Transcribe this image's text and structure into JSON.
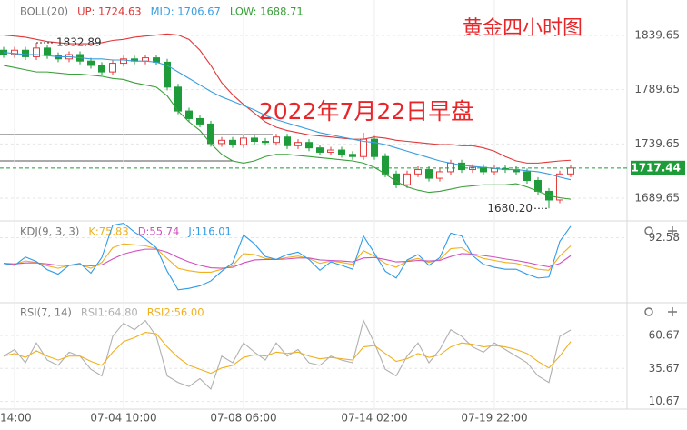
{
  "chart_data": [
    {
      "type": "candlestick",
      "title": "黄金四小时图",
      "annotation": "2022年7月22日早盘",
      "legend": [
        "BOLL(20)",
        "UP: 1724.63",
        "MID: 1706.67",
        "LOW: 1688.71"
      ],
      "categories": [
        null,
        "14:00",
        null,
        null,
        null,
        null,
        null,
        null,
        null,
        null,
        null,
        "07-04 10:00",
        null,
        null,
        null,
        null,
        null,
        null,
        null,
        null,
        null,
        null,
        "07-08 06:00",
        null,
        null,
        null,
        null,
        null,
        null,
        null,
        null,
        null,
        null,
        null,
        "07-14 02:00",
        null,
        null,
        null,
        null,
        null,
        null,
        null,
        null,
        null,
        null,
        "07-19 22:00",
        null,
        null,
        null,
        null,
        null,
        null,
        null
      ],
      "open": [
        1826,
        1822,
        1826,
        1820,
        1828,
        1821,
        1818,
        1822,
        1816,
        1812,
        1806,
        1814,
        1818,
        1816,
        1819,
        1815,
        1792,
        1770,
        1763,
        1758,
        1740,
        1743,
        1739,
        1745,
        1742,
        1741,
        1746,
        1738,
        1741,
        1736,
        1732,
        1734,
        1730,
        1728,
        1744,
        1728,
        1712,
        1702,
        1712,
        1716,
        1708,
        1714,
        1722,
        1716,
        1718,
        1714,
        1717,
        1716,
        1714,
        1706,
        1696,
        1688,
        1712
      ],
      "high": [
        1829,
        1829,
        1829,
        1832.89,
        1831,
        1824,
        1825,
        1825,
        1819,
        1815,
        1817,
        1821,
        1821,
        1822,
        1822,
        1818,
        1795,
        1773,
        1766,
        1761,
        1746,
        1746,
        1748,
        1748,
        1745,
        1749,
        1749,
        1744,
        1744,
        1739,
        1737,
        1737,
        1733,
        1750,
        1747,
        1731,
        1715,
        1715,
        1719,
        1719,
        1717,
        1725,
        1725,
        1721,
        1721,
        1720,
        1720,
        1719,
        1717,
        1709,
        1699,
        1715,
        1720
      ],
      "low": [
        1819,
        1819,
        1817,
        1817,
        1818,
        1815,
        1815,
        1813,
        1809,
        1803,
        1803,
        1811,
        1813,
        1813,
        1812,
        1789,
        1767,
        1760,
        1755,
        1737,
        1737,
        1736,
        1736,
        1739,
        1738,
        1738,
        1735,
        1735,
        1733,
        1729,
        1729,
        1727,
        1725,
        1725,
        1725,
        1709,
        1699,
        1699,
        1709,
        1705,
        1705,
        1711,
        1713,
        1713,
        1711,
        1711,
        1713,
        1711,
        1703,
        1693,
        1680.2,
        1685,
        1709
      ],
      "close": [
        1822,
        1826,
        1820,
        1828,
        1821,
        1818,
        1822,
        1816,
        1812,
        1806,
        1814,
        1818,
        1816,
        1819,
        1815,
        1792,
        1770,
        1763,
        1758,
        1740,
        1743,
        1739,
        1745,
        1742,
        1741,
        1746,
        1738,
        1741,
        1736,
        1732,
        1734,
        1730,
        1728,
        1744,
        1728,
        1712,
        1702,
        1712,
        1716,
        1708,
        1714,
        1722,
        1716,
        1718,
        1714,
        1717,
        1716,
        1714,
        1706,
        1696,
        1688,
        1712,
        1717.44
      ],
      "max_label": "1832.89",
      "min_label": "1680.20",
      "up_color": "#e8393b",
      "down_color": "#1e9c3a",
      "series": [
        {
          "name": "UP",
          "color": "#e0393b",
          "values": [
            1840,
            1839,
            1838,
            1836,
            1834,
            1833,
            1832,
            1832,
            1832,
            1833,
            1835,
            1836,
            1838,
            1839,
            1840,
            1841,
            1840,
            1836,
            1826,
            1812,
            1796,
            1785,
            1776,
            1768,
            1760,
            1755,
            1752,
            1750,
            1748,
            1747,
            1746,
            1745,
            1744,
            1744,
            1746,
            1745,
            1743,
            1742,
            1741,
            1740,
            1739,
            1739,
            1738,
            1738,
            1736,
            1733,
            1728,
            1724,
            1722,
            1722,
            1723,
            1724,
            1724.63
          ]
        },
        {
          "name": "MID",
          "color": "#3a9ee0",
          "values": [
            1824,
            1823,
            1822,
            1822,
            1821,
            1820,
            1820,
            1819,
            1818,
            1818,
            1817,
            1817,
            1816,
            1816,
            1815,
            1812,
            1806,
            1800,
            1794,
            1788,
            1783,
            1779,
            1775,
            1771,
            1766,
            1762,
            1759,
            1756,
            1753,
            1750,
            1748,
            1746,
            1744,
            1742,
            1741,
            1739,
            1736,
            1733,
            1730,
            1727,
            1724,
            1722,
            1720,
            1719,
            1718,
            1717,
            1716,
            1716,
            1715,
            1714,
            1712,
            1709,
            1706.67
          ]
        },
        {
          "name": "LOW",
          "color": "#3aa03a",
          "values": [
            1812,
            1810,
            1808,
            1806,
            1806,
            1805,
            1804,
            1804,
            1803,
            1802,
            1800,
            1799,
            1796,
            1794,
            1792,
            1784,
            1770,
            1760,
            1752,
            1740,
            1730,
            1724,
            1722,
            1724,
            1728,
            1730,
            1730,
            1729,
            1728,
            1727,
            1726,
            1725,
            1724,
            1722,
            1718,
            1712,
            1705,
            1700,
            1697,
            1695,
            1696,
            1698,
            1700,
            1701,
            1702,
            1702,
            1702,
            1703,
            1700,
            1696,
            1692,
            1690,
            1688.71
          ]
        }
      ],
      "ylim": [
        1675.4,
        1868.1
      ],
      "yticks": [
        1689.65,
        1739.65,
        1789.65,
        1839.65
      ],
      "grid": true
    },
    {
      "type": "line",
      "legend": [
        "KDJ(9, 3, 3)",
        "K:75.83",
        "D:55.74",
        "J:116.01"
      ],
      "series": [
        {
          "name": "K",
          "color": "#f0b020",
          "values": [
            40,
            38,
            45,
            42,
            35,
            30,
            36,
            38,
            30,
            42,
            72,
            80,
            78,
            76,
            70,
            50,
            30,
            25,
            22,
            22,
            28,
            35,
            60,
            58,
            50,
            48,
            52,
            55,
            50,
            40,
            45,
            42,
            38,
            66,
            55,
            40,
            32,
            45,
            50,
            42,
            48,
            70,
            72,
            58,
            50,
            46,
            42,
            40,
            34,
            28,
            26,
            55,
            75.83
          ]
        },
        {
          "name": "D",
          "color": "#d050c0",
          "values": [
            40,
            39,
            41,
            41,
            39,
            36,
            36,
            37,
            35,
            37,
            49,
            59,
            65,
            69,
            69,
            63,
            52,
            43,
            36,
            31,
            30,
            32,
            41,
            47,
            48,
            48,
            49,
            51,
            51,
            47,
            46,
            45,
            43,
            51,
            52,
            48,
            43,
            44,
            46,
            45,
            46,
            54,
            60,
            59,
            56,
            53,
            49,
            46,
            42,
            37,
            33,
            40,
            55.74
          ]
        },
        {
          "name": "J",
          "color": "#2f9be8",
          "values": [
            40,
            36,
            53,
            44,
            27,
            18,
            36,
            40,
            20,
            52,
            118,
            122,
            104,
            90,
            72,
            24,
            -14,
            -11,
            -6,
            4,
            24,
            41,
            98,
            80,
            54,
            48,
            58,
            63,
            48,
            26,
            43,
            36,
            28,
            96,
            61,
            24,
            10,
            47,
            58,
            36,
            52,
            102,
            96,
            56,
            38,
            32,
            28,
            28,
            18,
            10,
            12,
            85,
            116.01
          ]
        }
      ],
      "ylim": [
        -20,
        125
      ],
      "yticks": [
        92.58
      ],
      "grid": true
    },
    {
      "type": "line",
      "legend": [
        "RSI(7, 14)",
        "RSI1:64.80",
        "RSI2:56.00"
      ],
      "series": [
        {
          "name": "RSI1",
          "color": "#b0b0b0",
          "values": [
            45,
            50,
            40,
            55,
            42,
            38,
            48,
            45,
            35,
            30,
            60,
            70,
            65,
            72,
            60,
            30,
            25,
            22,
            28,
            20,
            45,
            40,
            55,
            48,
            42,
            55,
            45,
            50,
            40,
            38,
            45,
            42,
            40,
            72,
            55,
            35,
            30,
            45,
            55,
            40,
            50,
            65,
            60,
            52,
            48,
            55,
            50,
            45,
            40,
            30,
            25,
            60,
            64.8
          ]
        },
        {
          "name": "RSI2",
          "color": "#f0b020",
          "values": [
            45,
            47,
            44,
            49,
            45,
            42,
            45,
            45,
            41,
            38,
            48,
            56,
            59,
            63,
            62,
            52,
            44,
            38,
            35,
            32,
            36,
            38,
            44,
            46,
            45,
            48,
            47,
            48,
            45,
            43,
            44,
            43,
            42,
            52,
            53,
            47,
            41,
            43,
            47,
            44,
            46,
            52,
            55,
            54,
            52,
            53,
            52,
            50,
            47,
            41,
            36,
            45,
            56
          ]
        }
      ],
      "ylim": [
        3.5,
        84.75
      ],
      "yticks": [
        10.67,
        35.67,
        60.67
      ],
      "grid": true
    }
  ]
}
